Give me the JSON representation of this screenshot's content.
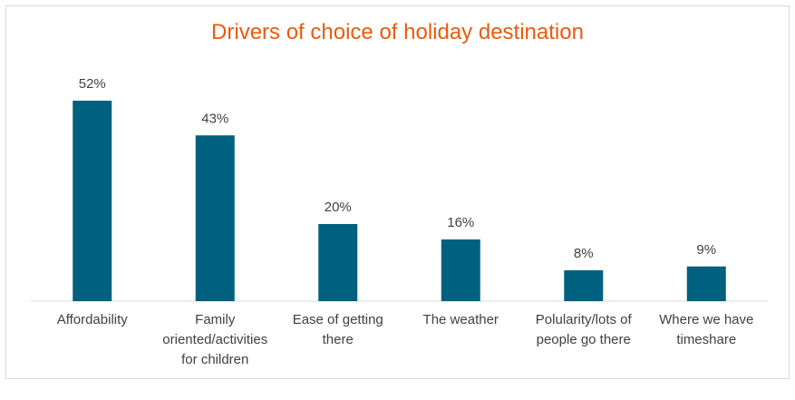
{
  "chart_data": {
    "type": "bar",
    "title": "Drivers of choice of holiday destination",
    "categories": [
      "Affordability",
      "Family oriented/activities for children",
      "Ease of getting there",
      "The weather",
      "Polularity/lots of people go there",
      "Where we have timeshare"
    ],
    "values": [
      52,
      43,
      20,
      16,
      8,
      9
    ],
    "data_labels": [
      "52%",
      "43%",
      "20%",
      "16%",
      "8%",
      "9%"
    ],
    "unit": "%",
    "ylim": [
      0,
      55
    ],
    "grid": false,
    "legend": "none",
    "bar_color": "#00607f",
    "title_color": "#ea5b0c"
  }
}
